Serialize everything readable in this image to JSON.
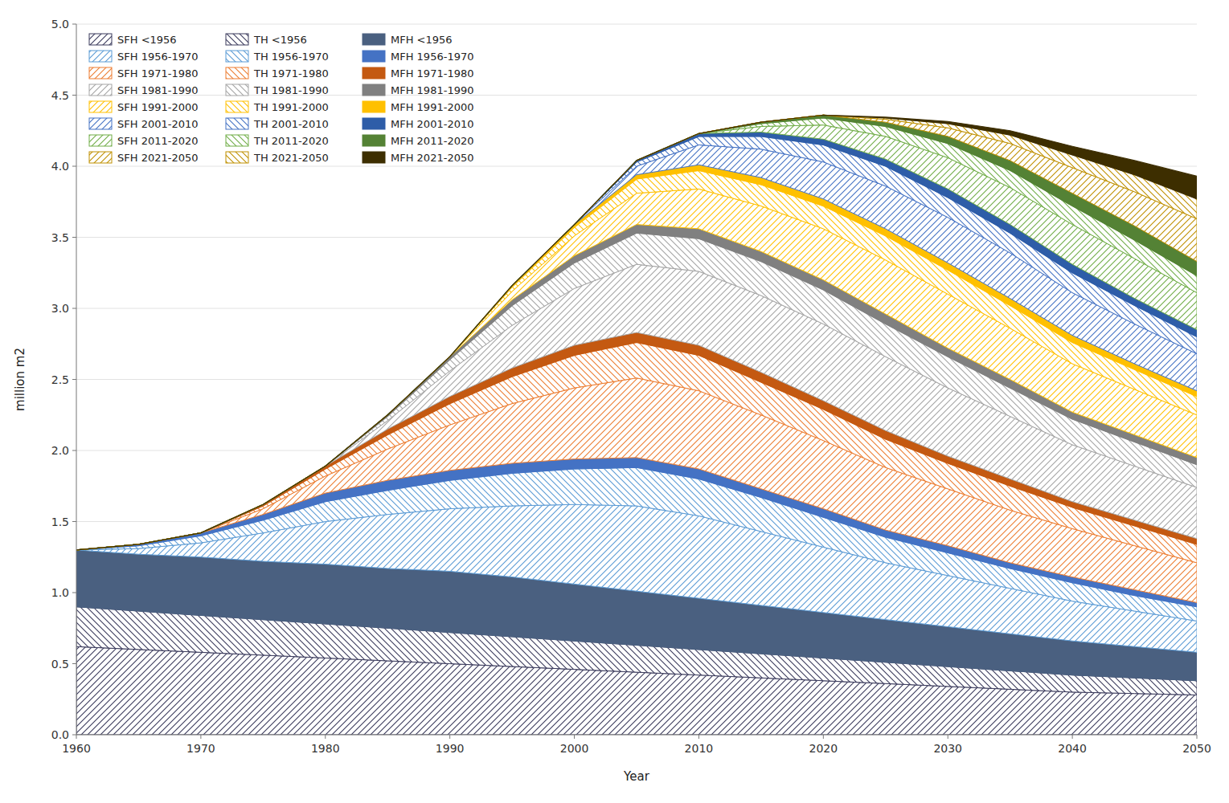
{
  "chart_data": {
    "type": "area",
    "stacked": true,
    "grid": true,
    "legend": "upper left",
    "xlabel": "Year",
    "ylabel": "million m2",
    "xlim": [
      1960,
      2050
    ],
    "ylim": [
      0,
      5.0
    ],
    "xticks": [
      1960,
      1970,
      1980,
      1990,
      2000,
      2010,
      2020,
      2030,
      2040,
      2050
    ],
    "yticks": [
      {
        "value": 0.0,
        "label": "0.0"
      },
      0.5,
      {
        "value": 1.0,
        "label": "1.0"
      },
      1.5,
      {
        "value": 2.0,
        "label": "2.0"
      },
      2.5,
      {
        "value": 3.0,
        "label": "3.0"
      },
      3.5,
      {
        "value": 4.0,
        "label": "4.0"
      },
      4.5,
      {
        "value": 5.0,
        "label": "5.0"
      }
    ],
    "x": [
      1960,
      1965,
      1970,
      1975,
      1980,
      1985,
      1990,
      1995,
      2000,
      2005,
      2010,
      2015,
      2020,
      2025,
      2030,
      2035,
      2040,
      2045,
      2050
    ],
    "series": [
      {
        "name": "SFH <1956",
        "color": "#3a3a5c",
        "values": [
          0.62,
          0.6,
          0.58,
          0.56,
          0.54,
          0.52,
          0.5,
          0.48,
          0.46,
          0.44,
          0.42,
          0.4,
          0.38,
          0.36,
          0.34,
          0.32,
          0.3,
          0.29,
          0.28
        ]
      },
      {
        "name": "TH <1956",
        "color": "#3a3a5c",
        "values": [
          0.28,
          0.27,
          0.26,
          0.25,
          0.24,
          0.23,
          0.22,
          0.21,
          0.2,
          0.19,
          0.18,
          0.17,
          0.16,
          0.15,
          0.14,
          0.13,
          0.12,
          0.11,
          0.1
        ]
      },
      {
        "name": "MFH <1956",
        "color": "#4a6080",
        "values": [
          0.4,
          0.4,
          0.41,
          0.41,
          0.42,
          0.42,
          0.43,
          0.42,
          0.4,
          0.38,
          0.36,
          0.34,
          0.32,
          0.3,
          0.28,
          0.26,
          0.24,
          0.22,
          0.2
        ]
      },
      {
        "name": "SFH 1956-1970",
        "color": "#5b9bd5",
        "values": [
          0.0,
          0.04,
          0.1,
          0.2,
          0.3,
          0.38,
          0.44,
          0.5,
          0.56,
          0.6,
          0.58,
          0.52,
          0.46,
          0.4,
          0.36,
          0.32,
          0.28,
          0.25,
          0.22
        ]
      },
      {
        "name": "TH 1956-1970",
        "color": "#5b9bd5",
        "values": [
          0.0,
          0.02,
          0.05,
          0.09,
          0.14,
          0.17,
          0.2,
          0.23,
          0.25,
          0.27,
          0.26,
          0.24,
          0.21,
          0.18,
          0.16,
          0.14,
          0.13,
          0.11,
          0.1
        ]
      },
      {
        "name": "MFH 1956-1970",
        "color": "#4472c4",
        "values": [
          0.0,
          0.01,
          0.02,
          0.04,
          0.06,
          0.07,
          0.07,
          0.07,
          0.07,
          0.07,
          0.07,
          0.06,
          0.06,
          0.05,
          0.05,
          0.04,
          0.04,
          0.04,
          0.03
        ]
      },
      {
        "name": "SFH 1971-1980",
        "color": "#ed7d31",
        "values": [
          0.0,
          0.0,
          0.0,
          0.04,
          0.12,
          0.22,
          0.32,
          0.42,
          0.5,
          0.56,
          0.55,
          0.52,
          0.48,
          0.44,
          0.4,
          0.37,
          0.34,
          0.31,
          0.28
        ]
      },
      {
        "name": "TH 1971-1980",
        "color": "#ed7d31",
        "values": [
          0.0,
          0.0,
          0.0,
          0.02,
          0.05,
          0.1,
          0.15,
          0.19,
          0.23,
          0.25,
          0.25,
          0.23,
          0.22,
          0.2,
          0.18,
          0.17,
          0.15,
          0.14,
          0.13
        ]
      },
      {
        "name": "MFH 1971-1980",
        "color": "#c45911",
        "values": [
          0.0,
          0.0,
          0.0,
          0.01,
          0.02,
          0.04,
          0.05,
          0.06,
          0.07,
          0.07,
          0.07,
          0.07,
          0.06,
          0.06,
          0.05,
          0.05,
          0.04,
          0.04,
          0.04
        ]
      },
      {
        "name": "SFH 1981-1990",
        "color": "#a5a5a5",
        "values": [
          0.0,
          0.0,
          0.0,
          0.0,
          0.0,
          0.06,
          0.18,
          0.3,
          0.4,
          0.48,
          0.52,
          0.54,
          0.54,
          0.52,
          0.48,
          0.44,
          0.4,
          0.38,
          0.36
        ]
      },
      {
        "name": "TH 1981-1990",
        "color": "#a5a5a5",
        "values": [
          0.0,
          0.0,
          0.0,
          0.0,
          0.0,
          0.03,
          0.08,
          0.14,
          0.18,
          0.22,
          0.23,
          0.24,
          0.24,
          0.23,
          0.22,
          0.2,
          0.18,
          0.17,
          0.16
        ]
      },
      {
        "name": "MFH 1981-1990",
        "color": "#808080",
        "values": [
          0.0,
          0.0,
          0.0,
          0.0,
          0.0,
          0.01,
          0.02,
          0.04,
          0.05,
          0.06,
          0.07,
          0.07,
          0.07,
          0.07,
          0.06,
          0.06,
          0.05,
          0.05,
          0.05
        ]
      },
      {
        "name": "SFH 1991-2000",
        "color": "#ffc000",
        "values": [
          0.0,
          0.0,
          0.0,
          0.0,
          0.0,
          0.0,
          0.0,
          0.06,
          0.14,
          0.22,
          0.28,
          0.32,
          0.36,
          0.38,
          0.38,
          0.36,
          0.34,
          0.32,
          0.3
        ]
      },
      {
        "name": "TH 1991-2000",
        "color": "#ffc000",
        "values": [
          0.0,
          0.0,
          0.0,
          0.0,
          0.0,
          0.0,
          0.0,
          0.03,
          0.06,
          0.1,
          0.13,
          0.15,
          0.16,
          0.17,
          0.17,
          0.16,
          0.15,
          0.14,
          0.13
        ]
      },
      {
        "name": "MFH 1991-2000",
        "color": "#ffc000",
        "values": [
          0.0,
          0.0,
          0.0,
          0.0,
          0.0,
          0.0,
          0.0,
          0.01,
          0.02,
          0.03,
          0.04,
          0.05,
          0.05,
          0.05,
          0.05,
          0.05,
          0.05,
          0.04,
          0.04
        ]
      },
      {
        "name": "SFH 2001-2010",
        "color": "#4472c4",
        "values": [
          0.0,
          0.0,
          0.0,
          0.0,
          0.0,
          0.0,
          0.0,
          0.0,
          0.0,
          0.06,
          0.14,
          0.2,
          0.26,
          0.3,
          0.32,
          0.32,
          0.3,
          0.28,
          0.26
        ]
      },
      {
        "name": "TH 2001-2010",
        "color": "#4472c4",
        "values": [
          0.0,
          0.0,
          0.0,
          0.0,
          0.0,
          0.0,
          0.0,
          0.0,
          0.0,
          0.03,
          0.06,
          0.09,
          0.12,
          0.14,
          0.14,
          0.14,
          0.14,
          0.13,
          0.12
        ]
      },
      {
        "name": "MFH 2001-2010",
        "color": "#2e5da8",
        "values": [
          0.0,
          0.0,
          0.0,
          0.0,
          0.0,
          0.0,
          0.0,
          0.0,
          0.0,
          0.01,
          0.02,
          0.03,
          0.04,
          0.05,
          0.06,
          0.06,
          0.06,
          0.05,
          0.05
        ]
      },
      {
        "name": "SFH 2011-2020",
        "color": "#70ad47",
        "values": [
          0.0,
          0.0,
          0.0,
          0.0,
          0.0,
          0.0,
          0.0,
          0.0,
          0.0,
          0.0,
          0.0,
          0.04,
          0.1,
          0.16,
          0.22,
          0.26,
          0.28,
          0.28,
          0.26
        ]
      },
      {
        "name": "TH 2011-2020",
        "color": "#70ad47",
        "values": [
          0.0,
          0.0,
          0.0,
          0.0,
          0.0,
          0.0,
          0.0,
          0.0,
          0.0,
          0.0,
          0.0,
          0.02,
          0.05,
          0.07,
          0.1,
          0.12,
          0.13,
          0.13,
          0.12
        ]
      },
      {
        "name": "MFH 2011-2020",
        "color": "#548235",
        "values": [
          0.0,
          0.0,
          0.0,
          0.0,
          0.0,
          0.0,
          0.0,
          0.0,
          0.0,
          0.0,
          0.0,
          0.01,
          0.02,
          0.03,
          0.05,
          0.07,
          0.09,
          0.1,
          0.1
        ]
      },
      {
        "name": "SFH 2021-2050",
        "color": "#bf9000",
        "values": [
          0.0,
          0.0,
          0.0,
          0.0,
          0.0,
          0.0,
          0.0,
          0.0,
          0.0,
          0.0,
          0.0,
          0.0,
          0.0,
          0.02,
          0.06,
          0.12,
          0.18,
          0.24,
          0.3
        ]
      },
      {
        "name": "TH 2021-2050",
        "color": "#bf9000",
        "values": [
          0.0,
          0.0,
          0.0,
          0.0,
          0.0,
          0.0,
          0.0,
          0.0,
          0.0,
          0.0,
          0.0,
          0.0,
          0.0,
          0.01,
          0.03,
          0.06,
          0.09,
          0.12,
          0.14
        ]
      },
      {
        "name": "MFH 2021-2050",
        "color": "#3d2e00",
        "values": [
          0.0,
          0.0,
          0.0,
          0.0,
          0.0,
          0.0,
          0.0,
          0.0,
          0.0,
          0.0,
          0.0,
          0.0,
          0.0,
          0.005,
          0.015,
          0.03,
          0.06,
          0.1,
          0.16
        ]
      }
    ]
  }
}
